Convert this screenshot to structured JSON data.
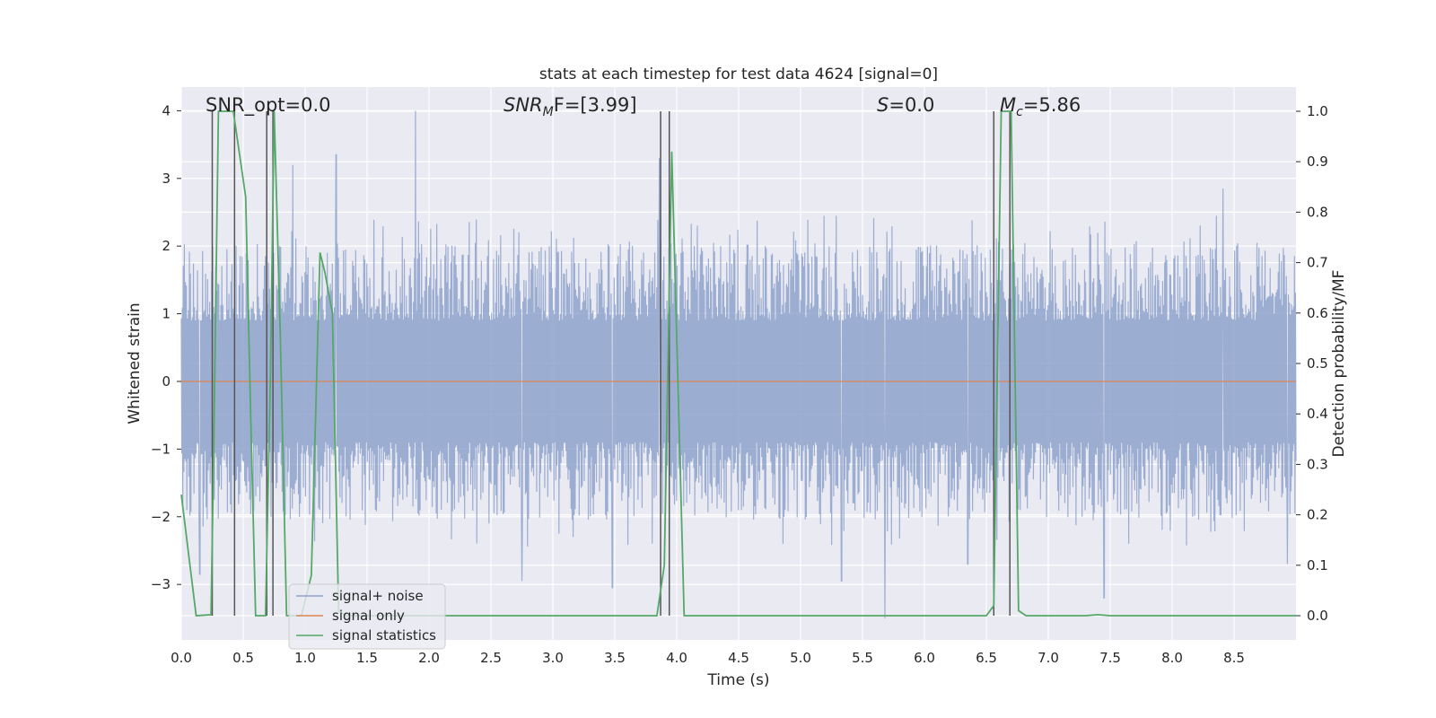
{
  "chart_data": {
    "type": "line",
    "title": "stats at each timestep for test data 4624 [signal=0]",
    "xlabel": "Time (s)",
    "ylabel": "Whitened strain",
    "y2label": "Detection probability/MF",
    "xlim": [
      0.0,
      9.0
    ],
    "ylim": [
      -3.82,
      4.35
    ],
    "y2lim": [
      -0.048,
      1.048
    ],
    "x_ticks": [
      "0.0",
      "0.5",
      "1.0",
      "1.5",
      "2.0",
      "2.5",
      "3.0",
      "3.5",
      "4.0",
      "4.5",
      "5.0",
      "5.5",
      "6.0",
      "6.5",
      "7.0",
      "7.5",
      "8.0",
      "8.5"
    ],
    "y_ticks": [
      "4",
      "3",
      "2",
      "1",
      "0",
      "−1",
      "−2",
      "−3"
    ],
    "y2_ticks": [
      "1.0",
      "0.9",
      "0.8",
      "0.7",
      "0.6",
      "0.5",
      "0.4",
      "0.3",
      "0.2",
      "0.1",
      "0.0"
    ],
    "annotations": {
      "snr_opt": "SNR_opt=0.0",
      "snr_mf_main": "SNR",
      "snr_mf_sub": "M",
      "snr_mf_rest": "F=[3.99]",
      "s_var": "S",
      "s_rest": "=0.0",
      "mc_var": "M",
      "mc_sub": "c",
      "mc_rest": "=5.86"
    },
    "noise_envelope": {
      "typical_range": [
        -1.9,
        1.9
      ],
      "spikes": [
        [
          1.89,
          4.0
        ],
        [
          0.9,
          3.2
        ],
        [
          1.25,
          3.35
        ],
        [
          3.86,
          3.3
        ],
        [
          2.75,
          2.85
        ],
        [
          6.6,
          2.05
        ],
        [
          8.41,
          2.85
        ],
        [
          5.68,
          -3.5
        ],
        [
          3.48,
          -3.05
        ],
        [
          7.45,
          -3.2
        ],
        [
          2.75,
          -2.95
        ],
        [
          5.33,
          -2.95
        ],
        [
          6.35,
          -2.7
        ],
        [
          8.93,
          -2.7
        ],
        [
          0.15,
          -2.85
        ]
      ]
    },
    "vertical_markers": [
      0.25,
      0.43,
      0.69,
      0.74,
      3.87,
      3.94,
      6.56,
      6.69
    ],
    "series": [
      {
        "name": "signal+ noise",
        "color": "#8ea2cc",
        "axis": "left"
      },
      {
        "name": "signal only",
        "color": "#dd8452",
        "axis": "left",
        "x": [
          0.0,
          9.0
        ],
        "values": [
          0.0,
          0.0
        ]
      },
      {
        "name": "signal statistics",
        "color": "#55a868",
        "axis": "right",
        "x": [
          0.0,
          0.06,
          0.12,
          0.24,
          0.26,
          0.3,
          0.42,
          0.52,
          0.56,
          0.6,
          0.68,
          0.72,
          0.75,
          0.8,
          0.85,
          0.97,
          1.05,
          1.12,
          1.16,
          1.22,
          1.27,
          1.33,
          3.84,
          3.9,
          3.96,
          4.06,
          6.5,
          6.56,
          6.62,
          6.7,
          6.76,
          6.82,
          7.3,
          7.4,
          7.5,
          9.0
        ],
        "values": [
          0.24,
          0.12,
          0.0,
          0.002,
          0.3,
          1.0,
          1.0,
          0.83,
          0.4,
          0.0,
          0.0,
          0.48,
          1.0,
          0.55,
          0.0,
          0.0,
          0.08,
          0.72,
          0.68,
          0.6,
          0.01,
          0.0,
          0.0,
          0.1,
          0.92,
          0.0,
          0.0,
          0.02,
          1.0,
          1.0,
          0.01,
          0.0,
          0.0,
          0.002,
          0.0,
          0.0
        ]
      }
    ]
  }
}
